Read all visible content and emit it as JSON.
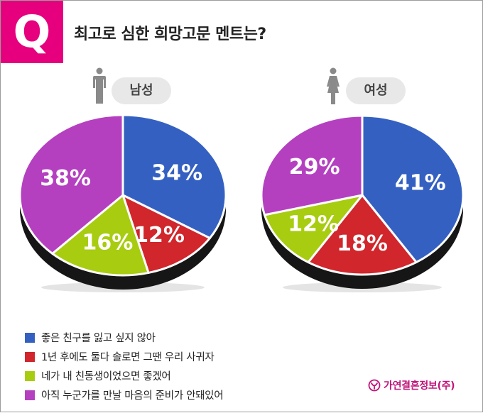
{
  "header": {
    "badge": "Q",
    "title": "최고로 심한 희망고문 멘트는?"
  },
  "groups": [
    {
      "label": "남성",
      "icon": "male-person-icon"
    },
    {
      "label": "여성",
      "icon": "female-person-icon"
    }
  ],
  "legend": [
    {
      "label": "좋은 친구를 잃고 싶지 않아",
      "color": "#3461c1"
    },
    {
      "label": "1년 후에도 둘다 솔로면 그땐 우리 사귀자",
      "color": "#d0262c"
    },
    {
      "label": "네가 내 친동생이었으면 좋겠어",
      "color": "#a8cc10"
    },
    {
      "label": "아직 누군가를 만날 마음의 준비가 안돼있어",
      "color": "#b440c0"
    }
  ],
  "brand": {
    "name": "가연결혼정보(주)",
    "icon": "gayeon-logo-icon",
    "color": "#c0147a"
  },
  "chart_data": [
    {
      "type": "pie",
      "title": "남성",
      "categories": [
        "좋은 친구를 잃고 싶지 않아",
        "1년 후에도 둘다 솔로면 그땐 우리 사귀자",
        "네가 내 친동생이었으면 좋겠어",
        "아직 누군가를 만날 마음의 준비가 안돼있어"
      ],
      "values": [
        34,
        12,
        16,
        38
      ],
      "labels": [
        "34%",
        "12%",
        "16%",
        "38%"
      ],
      "colors": [
        "#3461c1",
        "#d0262c",
        "#a8cc10",
        "#b440c0"
      ]
    },
    {
      "type": "pie",
      "title": "여성",
      "categories": [
        "좋은 친구를 잃고 싶지 않아",
        "1년 후에도 둘다 솔로면 그땐 우리 사귀자",
        "네가 내 친동생이었으면 좋겠어",
        "아직 누군가를 만날 마음의 준비가 안돼있어"
      ],
      "values": [
        41,
        18,
        12,
        29
      ],
      "labels": [
        "41%",
        "18%",
        "12%",
        "29%"
      ],
      "colors": [
        "#3461c1",
        "#d0262c",
        "#a8cc10",
        "#b440c0"
      ]
    }
  ]
}
